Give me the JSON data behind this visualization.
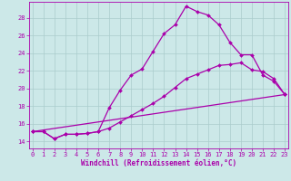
{
  "xlabel": "Windchill (Refroidissement éolien,°C)",
  "background_color": "#cce8e8",
  "grid_color": "#aacccc",
  "line_color": "#aa00aa",
  "x_ticks": [
    0,
    1,
    2,
    3,
    4,
    5,
    6,
    7,
    8,
    9,
    10,
    11,
    12,
    13,
    14,
    15,
    16,
    17,
    18,
    19,
    20,
    21,
    22,
    23
  ],
  "y_ticks": [
    14,
    16,
    18,
    20,
    22,
    24,
    26,
    28
  ],
  "xlim": [
    -0.3,
    23.3
  ],
  "ylim": [
    13.2,
    29.8
  ],
  "curve1_x": [
    0,
    1,
    2,
    3,
    4,
    5,
    6,
    7,
    8,
    9,
    10,
    11,
    12,
    13,
    14,
    15,
    16,
    17,
    18,
    19,
    20,
    21,
    22,
    23
  ],
  "curve1_y": [
    15.1,
    15.1,
    14.3,
    14.8,
    14.8,
    14.9,
    15.1,
    17.8,
    19.8,
    21.5,
    22.2,
    24.2,
    26.2,
    27.2,
    29.3,
    28.7,
    28.3,
    27.2,
    25.2,
    23.8,
    23.8,
    21.5,
    20.8,
    19.3
  ],
  "curve2_x": [
    0,
    1,
    2,
    3,
    4,
    5,
    6,
    7,
    8,
    9,
    10,
    11,
    12,
    13,
    14,
    15,
    16,
    17,
    18,
    19,
    20,
    21,
    22,
    23
  ],
  "curve2_y": [
    15.1,
    15.1,
    14.3,
    14.8,
    14.8,
    14.9,
    15.1,
    15.5,
    16.2,
    16.9,
    17.6,
    18.3,
    19.1,
    20.1,
    21.1,
    21.6,
    22.1,
    22.6,
    22.7,
    22.9,
    22.1,
    21.9,
    21.1,
    19.3
  ],
  "curve3_x": [
    0,
    23
  ],
  "curve3_y": [
    15.1,
    19.3
  ],
  "marker_size": 2.0,
  "line_width": 0.9,
  "tick_fontsize": 5.0,
  "xlabel_fontsize": 5.5
}
